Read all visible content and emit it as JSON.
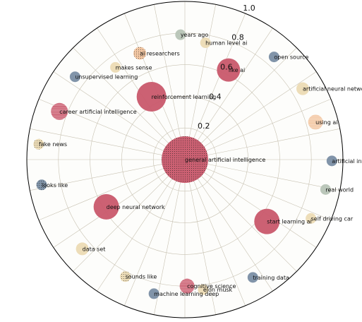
{
  "chart_data": {
    "type": "scatter",
    "projection": "polar",
    "radial_range": [
      0,
      1.0
    ],
    "radial_ticks": [
      {
        "value": 0.2,
        "label": "0.2"
      },
      {
        "value": 0.4,
        "label": "0.4"
      },
      {
        "value": 0.6,
        "label": "0.6"
      },
      {
        "value": 0.8,
        "label": "0.8"
      },
      {
        "value": 1.0,
        "label": "1.0"
      }
    ],
    "angular_gridlines": 32,
    "grid": true,
    "colors": {
      "red": "#c9586c",
      "cream": "#ecdbb4",
      "slate": "#7a8ea4",
      "sage": "#b7c4b6",
      "peach": "#f2c49e",
      "grid": "#c8c2b2",
      "background": "#fdfdfb",
      "frame": "#000000"
    },
    "points": [
      {
        "term": "general artificial intelligence",
        "angle_deg": 0,
        "r": 0.0,
        "size": 22,
        "color": "red",
        "texture": "dots"
      },
      {
        "term": "years ago",
        "angle_deg": 92,
        "r": 0.79,
        "size": 5,
        "color": "sage"
      },
      {
        "term": "human level ai",
        "angle_deg": 80,
        "r": 0.75,
        "size": 5,
        "color": "cream"
      },
      {
        "term": "ai researchers",
        "angle_deg": 113,
        "r": 0.73,
        "size": 6,
        "color": "peach",
        "texture": "dots"
      },
      {
        "term": "like ai",
        "angle_deg": 64,
        "r": 0.63,
        "size": 11,
        "color": "red"
      },
      {
        "term": "open source",
        "angle_deg": 49,
        "r": 0.86,
        "size": 5,
        "color": "slate"
      },
      {
        "term": "makes sense",
        "angle_deg": 127,
        "r": 0.73,
        "size": 5,
        "color": "cream"
      },
      {
        "term": "reinforcement learning",
        "angle_deg": 118,
        "r": 0.45,
        "size": 14,
        "color": "red"
      },
      {
        "term": "artificial neural network",
        "angle_deg": 31,
        "r": 0.87,
        "size": 6,
        "color": "cream"
      },
      {
        "term": "unsupervised learning",
        "angle_deg": 143,
        "r": 0.87,
        "size": 5,
        "color": "slate"
      },
      {
        "term": "using ai",
        "angle_deg": 16,
        "r": 0.86,
        "size": 7,
        "color": "peach",
        "texture": "lines"
      },
      {
        "term": "career artificial intelligence",
        "angle_deg": 159,
        "r": 0.85,
        "size": 8,
        "color": "red",
        "texture": "lines"
      },
      {
        "term": "artificial intelligence ai",
        "angle_deg": -0.5,
        "r": 0.93,
        "size": 5,
        "color": "slate"
      },
      {
        "term": "fake news",
        "angle_deg": 174,
        "r": 0.93,
        "size": 5,
        "color": "cream",
        "texture": "dots"
      },
      {
        "term": "real world",
        "angle_deg": -12,
        "r": 0.91,
        "size": 5,
        "color": "sage"
      },
      {
        "term": "looks like",
        "angle_deg": -170,
        "r": 0.92,
        "size": 5,
        "color": "slate",
        "texture": "dots"
      },
      {
        "term": "self driving car",
        "angle_deg": -25,
        "r": 0.88,
        "size": 5,
        "color": "cream"
      },
      {
        "term": "deep neural network",
        "angle_deg": -149,
        "r": 0.58,
        "size": 12,
        "color": "red"
      },
      {
        "term": "start learning ai",
        "angle_deg": -37,
        "r": 0.65,
        "size": 12,
        "color": "red"
      },
      {
        "term": "data set",
        "angle_deg": -139,
        "r": 0.86,
        "size": 6,
        "color": "cream"
      },
      {
        "term": "training data",
        "angle_deg": -60,
        "r": 0.86,
        "size": 5,
        "color": "slate"
      },
      {
        "term": "sounds like",
        "angle_deg": -117,
        "r": 0.83,
        "size": 5,
        "color": "cream",
        "texture": "dots"
      },
      {
        "term": "cognitive science",
        "angle_deg": -89,
        "r": 0.8,
        "size": 7,
        "color": "red",
        "texture": "lines"
      },
      {
        "term": "elon musk",
        "angle_deg": -82,
        "r": 0.83,
        "size": 5,
        "color": "cream"
      },
      {
        "term": "machine learning deep",
        "angle_deg": -103,
        "r": 0.87,
        "size": 5,
        "color": "slate"
      }
    ]
  }
}
